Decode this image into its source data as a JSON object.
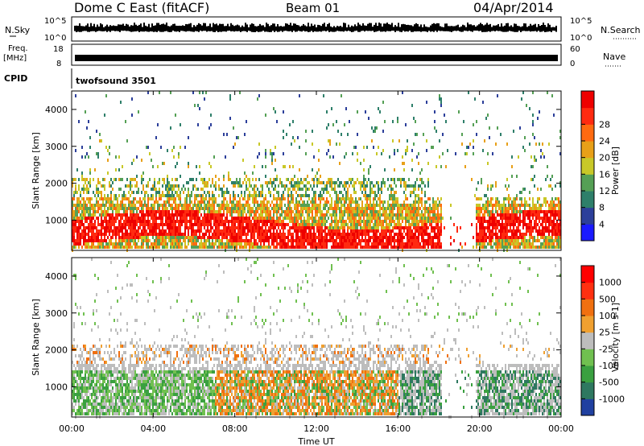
{
  "header": {
    "station": "Dome C East (fitACF)",
    "beam": "Beam 01",
    "date": "04/Apr/2014"
  },
  "noise_panel": {
    "left_label": "N.Sky",
    "right_label": "N.Search",
    "tick_top": "10^5",
    "tick_bottom": "10^0"
  },
  "freq_panel": {
    "left_label_line1": "Freq.",
    "left_label_line2": "[MHz]",
    "right_label": "Nave",
    "left_tick_top": "18",
    "left_tick_bottom": "8",
    "right_tick_top": "60",
    "right_tick_bottom": "0"
  },
  "cpid_panel": {
    "label": "CPID",
    "value": "twofsound 3501"
  },
  "x_axis": {
    "label": "Time UT",
    "ticks": [
      "00:00",
      "04:00",
      "08:00",
      "12:00",
      "16:00",
      "20:00",
      "00:00"
    ]
  },
  "chart_data": [
    {
      "type": "heatmap",
      "name": "power",
      "ylabel": "Slant Range [km]",
      "yticks": [
        "1000",
        "2000",
        "3000",
        "4000"
      ],
      "ylim": [
        180,
        4500
      ],
      "xlim_hours": [
        0,
        24
      ],
      "colorbar": {
        "label": "Power [dB]",
        "ticks": [
          "4",
          "8",
          "12",
          "16",
          "20",
          "24",
          "28"
        ],
        "colors": [
          "#1a1aff",
          "#2c3f9a",
          "#2e7f6a",
          "#55a055",
          "#c8c828",
          "#e8a018",
          "#ff6a10",
          "#ff2a10",
          "#ee0000"
        ]
      }
    },
    {
      "type": "heatmap",
      "name": "velocity",
      "ylabel": "Slant Range [km]",
      "yticks": [
        "1000",
        "2000",
        "3000",
        "4000"
      ],
      "ylim": [
        180,
        4500
      ],
      "xlim_hours": [
        0,
        24
      ],
      "colorbar": {
        "label": "Velocity [m s-1]",
        "ticks": [
          "1000",
          "500",
          "100",
          "25",
          "-25",
          "-100",
          "-500",
          "-1000"
        ],
        "colors": [
          "#2040a0",
          "#2e7860",
          "#3aa040",
          "#70c050",
          "#bdbdbd",
          "#f0a030",
          "#f07010",
          "#ff3010",
          "#ff0000"
        ]
      }
    }
  ]
}
